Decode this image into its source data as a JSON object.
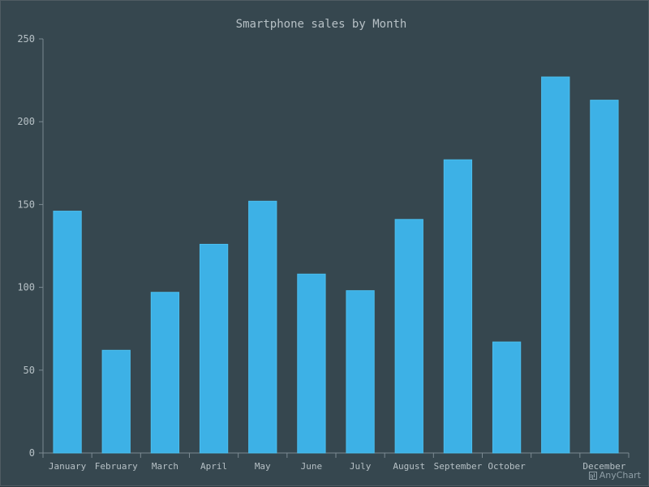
{
  "chart_data": {
    "type": "bar",
    "title": "Smartphone sales by Month",
    "categories": [
      "January",
      "February",
      "March",
      "April",
      "May",
      "June",
      "July",
      "August",
      "September",
      "October",
      "",
      "December"
    ],
    "values": [
      146,
      62,
      97,
      126,
      152,
      108,
      98,
      141,
      177,
      67,
      227,
      213
    ],
    "ylim": [
      0,
      250
    ],
    "yticks": [
      0,
      50,
      100,
      150,
      200,
      250
    ],
    "grid": false,
    "legend": "none"
  },
  "credit": "AnyChart",
  "colors": {
    "background": "#36474f",
    "bar_fill": "#3db1e6",
    "bar_stroke": "#4bbfee",
    "axis": "#7b8a92",
    "text": "#b6c0c5"
  }
}
